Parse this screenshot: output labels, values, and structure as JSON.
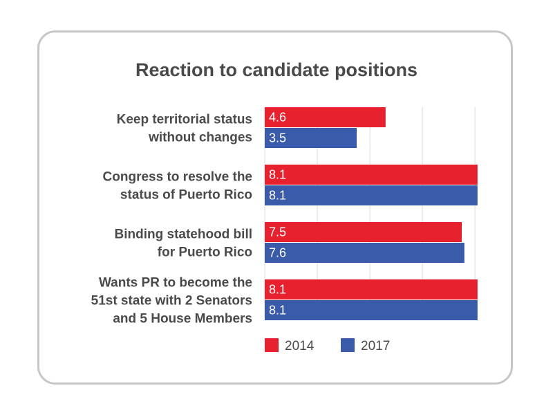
{
  "chart_data": {
    "type": "bar",
    "orientation": "horizontal",
    "title": "Reaction to candidate positions",
    "categories": [
      "Keep territorial status without changes",
      "Congress to resolve the status of Puerto Rico",
      "Binding statehood bill for Puerto Rico",
      "Wants PR to become the 51st state with 2 Senators and 5 House Members"
    ],
    "category_lines": [
      [
        "Keep territorial status",
        "without changes"
      ],
      [
        "Congress to resolve the",
        "status of Puerto Rico"
      ],
      [
        "Binding statehood bill",
        "for Puerto Rico"
      ],
      [
        "Wants PR to become the",
        "51st state with 2 Senators",
        "and 5 House Members"
      ]
    ],
    "series": [
      {
        "name": "2014",
        "color": "#e8212e",
        "values": [
          4.6,
          8.1,
          7.5,
          8.1
        ],
        "labels": [
          "4.6",
          "8.1",
          "7.5",
          "8.1"
        ]
      },
      {
        "name": "2017",
        "color": "#3a5ba9",
        "values": [
          3.5,
          8.1,
          7.6,
          8.1
        ],
        "labels": [
          "3.5",
          "8.1",
          "7.6",
          "8.1"
        ]
      }
    ],
    "xlim": [
      0,
      8
    ],
    "grid": true,
    "legend": "bottom"
  }
}
